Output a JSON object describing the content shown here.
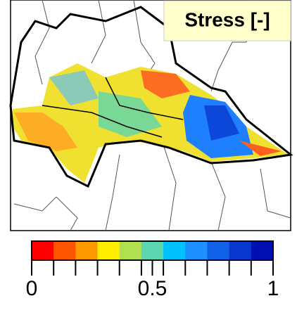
{
  "map": {
    "legend_title": "Stress [-]",
    "colorbar": {
      "colors": [
        "#ff0000",
        "#ff5500",
        "#ff9900",
        "#ffee00",
        "#b0e050",
        "#5cd6b0",
        "#00c0ff",
        "#1e90ff",
        "#1060e8",
        "#0838d0",
        "#0010b0"
      ],
      "lim": [
        0,
        1
      ],
      "ticks": [
        0,
        0.5,
        1
      ]
    }
  }
}
